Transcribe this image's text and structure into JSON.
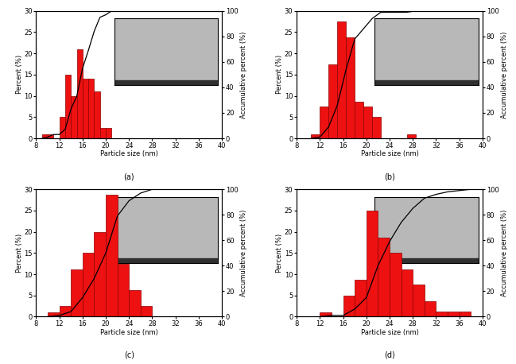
{
  "chart_data": [
    {
      "type": "histogram",
      "title": "(a)",
      "x_label": "Particle size (nm)",
      "y_label": "Percent (%)",
      "y2_label": "Accumulative percent (%)",
      "bins": [
        9,
        10,
        11,
        12,
        13,
        14,
        15,
        16,
        17,
        18,
        19,
        20,
        21
      ],
      "counts": [
        1,
        1,
        0,
        5,
        15,
        10,
        21,
        14,
        14,
        11,
        2.5,
        2.5
      ],
      "color": "#ee1111",
      "cumulative": {
        "x": [
          9,
          10,
          11,
          12,
          13,
          14,
          15,
          16,
          17,
          18,
          19,
          20,
          21,
          40
        ],
        "values": [
          0,
          1,
          3,
          3,
          7,
          23,
          33,
          55,
          69,
          84,
          95,
          97,
          100,
          100
        ],
        "color": "#000000",
        "axis": "y2"
      },
      "xlim": [
        8,
        40
      ],
      "xticks": [
        8,
        12,
        16,
        20,
        24,
        28,
        32,
        36,
        40
      ],
      "ylim": [
        0,
        30
      ],
      "yticks": [
        0,
        5,
        10,
        15,
        20,
        25,
        30
      ],
      "y2lim": [
        0,
        100
      ],
      "y2ticks": [
        0,
        20,
        40,
        60,
        80,
        100
      ]
    },
    {
      "type": "histogram",
      "title": "(b)",
      "x_label": "Particle size (nm)",
      "y_label": "Percent (%)",
      "y2_label": "Accumulative percent (%)",
      "bins": [
        10.5,
        12,
        13.5,
        15,
        16.5,
        18,
        19.5,
        21,
        22.5,
        24,
        25.5,
        27,
        28.5
      ],
      "counts": [
        1,
        7.5,
        17.5,
        27.5,
        23.7,
        8.7,
        7.5,
        5,
        0,
        0,
        0,
        1
      ],
      "color": "#ee1111",
      "cumulative": {
        "x": [
          10.5,
          12,
          13.5,
          15,
          16.5,
          18,
          19.5,
          21,
          22.5,
          24,
          25.5,
          27,
          28.5,
          40
        ],
        "values": [
          0,
          1,
          9,
          26,
          54,
          78,
          86,
          94,
          99,
          99,
          99,
          99,
          100,
          100
        ],
        "color": "#000000",
        "axis": "y2"
      },
      "xlim": [
        8,
        40
      ],
      "xticks": [
        8,
        12,
        16,
        20,
        24,
        28,
        32,
        36,
        40
      ],
      "ylim": [
        0,
        30
      ],
      "yticks": [
        0,
        5,
        10,
        15,
        20,
        25,
        30
      ],
      "y2lim": [
        0,
        100
      ],
      "y2ticks": [
        0,
        20,
        40,
        60,
        80,
        100
      ]
    },
    {
      "type": "histogram",
      "title": "(c)",
      "x_label": "Particle size (nm)",
      "y_label": "Percent (%)",
      "y2_label": "Accumulative percent (%)",
      "bins": [
        10,
        12,
        14,
        16,
        18,
        20,
        22,
        24,
        26,
        28
      ],
      "counts": [
        1,
        2.5,
        11.2,
        15,
        20,
        28.7,
        12.5,
        6.2,
        2.5
      ],
      "color": "#ee1111",
      "cumulative": {
        "x": [
          10,
          12,
          14,
          16,
          18,
          20,
          22,
          24,
          26,
          28,
          40
        ],
        "values": [
          0,
          1,
          4,
          15,
          30,
          50,
          79,
          91,
          97,
          100,
          100
        ],
        "color": "#000000",
        "axis": "y2"
      },
      "xlim": [
        8,
        40
      ],
      "xticks": [
        8,
        12,
        16,
        20,
        24,
        28,
        32,
        36,
        40
      ],
      "ylim": [
        0,
        30
      ],
      "yticks": [
        0,
        5,
        10,
        15,
        20,
        25,
        30
      ],
      "y2lim": [
        0,
        100
      ],
      "y2ticks": [
        0,
        20,
        40,
        60,
        80,
        100
      ]
    },
    {
      "type": "histogram",
      "title": "(d)",
      "x_label": "Particle size (nm)",
      "y_label": "Percent (%)",
      "y2_label": "Accumulative percent (%)",
      "bins": [
        12,
        14,
        16,
        18,
        20,
        22,
        24,
        26,
        28,
        30,
        32,
        34,
        36,
        38
      ],
      "counts": [
        1,
        0,
        5,
        8.7,
        25,
        18.7,
        15,
        11.2,
        7.5,
        3.7,
        1.2,
        1.2,
        1.2
      ],
      "color": "#ee1111",
      "cumulative": {
        "x": [
          12,
          14,
          16,
          18,
          20,
          22,
          24,
          26,
          28,
          30,
          32,
          34,
          36,
          38,
          40
        ],
        "values": [
          0,
          1,
          1,
          6,
          15,
          40,
          59,
          74,
          85,
          93,
          96,
          98,
          99,
          100,
          100
        ],
        "color": "#000000",
        "axis": "y2"
      },
      "xlim": [
        8,
        40
      ],
      "xticks": [
        8,
        12,
        16,
        20,
        24,
        28,
        32,
        36,
        40
      ],
      "ylim": [
        0,
        30
      ],
      "yticks": [
        0,
        5,
        10,
        15,
        20,
        25,
        30
      ],
      "y2lim": [
        0,
        100
      ],
      "y2ticks": [
        0,
        20,
        40,
        60,
        80,
        100
      ]
    }
  ]
}
